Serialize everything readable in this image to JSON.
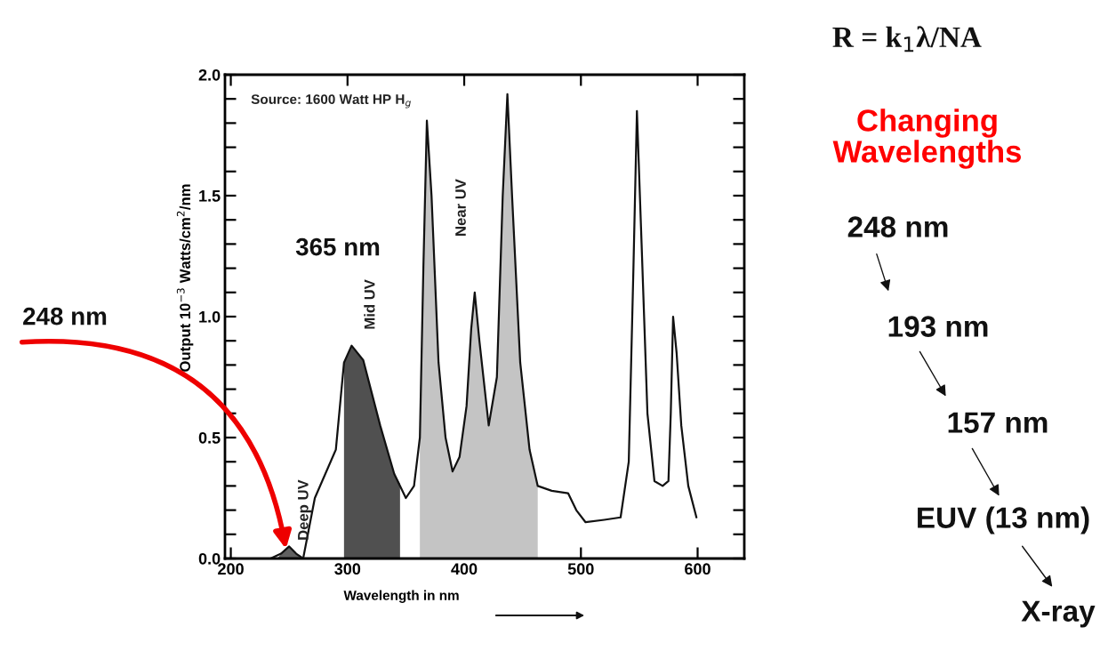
{
  "chart_data": {
    "type": "line",
    "xlabel": "Wavelength in nm",
    "ylabel": "Output 10$^{−3}$ Watts/cm$^{2}$/nm",
    "x": [
      202,
      234,
      243,
      250,
      256,
      262,
      272,
      290,
      297,
      303.5,
      313.5,
      328,
      340,
      350,
      357,
      362,
      365,
      368,
      372,
      378,
      384,
      390,
      396,
      402,
      406,
      409,
      413,
      421,
      428,
      433,
      437,
      441,
      448,
      456,
      463,
      475,
      489,
      496,
      504,
      520,
      534,
      541,
      545,
      548,
      552,
      557,
      563,
      570,
      575,
      577,
      579,
      582,
      586,
      592,
      599
    ],
    "series": [
      {
        "color": "#111111",
        "values": [
          0.0,
          0.0,
          0.02,
          0.05,
          0.02,
          0.0,
          0.25,
          0.45,
          0.81,
          0.88,
          0.82,
          0.55,
          0.35,
          0.25,
          0.3,
          0.5,
          1.2,
          1.81,
          1.5,
          0.81,
          0.5,
          0.36,
          0.42,
          0.63,
          0.95,
          1.1,
          0.9,
          0.55,
          0.75,
          1.5,
          1.92,
          1.5,
          0.81,
          0.45,
          0.3,
          0.28,
          0.27,
          0.2,
          0.15,
          0.16,
          0.17,
          0.4,
          1.2,
          1.85,
          1.3,
          0.6,
          0.32,
          0.3,
          0.32,
          0.6,
          1.0,
          0.85,
          0.55,
          0.3,
          0.17
        ]
      },
      {
        "type": "area",
        "color": "#606060",
        "x": [
          240,
          243,
          250,
          256,
          262
        ],
        "values": [
          0.0,
          0.02,
          0.05,
          0.02,
          0.0
        ]
      },
      {
        "type": "area",
        "color": "#505050",
        "x": [
          297,
          303.5,
          313.5,
          328,
          340,
          345
        ],
        "values": [
          0.81,
          0.88,
          0.82,
          0.55,
          0.35,
          0.31
        ]
      },
      {
        "type": "area",
        "color": "#c4c4c4",
        "x": [
          362,
          365,
          368,
          372,
          378,
          384,
          390,
          396,
          402,
          406,
          409,
          413,
          421,
          428,
          433,
          437,
          441,
          448,
          456,
          463
        ],
        "values": [
          0.5,
          1.2,
          1.81,
          1.5,
          0.81,
          0.5,
          0.36,
          0.42,
          0.63,
          0.95,
          1.1,
          0.9,
          0.55,
          0.75,
          1.5,
          1.92,
          1.5,
          0.81,
          0.45,
          0.3
        ]
      }
    ],
    "xlim": [
      195,
      640
    ],
    "ylim": [
      0,
      2.0
    ],
    "xticks": [
      200,
      300,
      400,
      500,
      {
        "value": 600,
        "label": "600"
      }
    ],
    "yticks": [
      {
        "value": 0,
        "label": "0.0"
      },
      {
        "value": 0.1,
        "label": null
      },
      {
        "value": 0.2,
        "label": null
      },
      {
        "value": 0.3,
        "label": null
      },
      {
        "value": 0.4,
        "label": null
      },
      0.5,
      {
        "value": 0.6,
        "label": null
      },
      {
        "value": 0.7,
        "label": null
      },
      {
        "value": 0.8,
        "label": null
      },
      {
        "value": 0.9,
        "label": null
      },
      {
        "value": 1.0,
        "label": "1.0"
      },
      {
        "value": 1.1,
        "label": null
      },
      {
        "value": 1.2,
        "label": null
      },
      {
        "value": 1.3,
        "label": null
      },
      {
        "value": 1.4,
        "label": null
      },
      1.5,
      {
        "value": 1.6,
        "label": null
      },
      {
        "value": 1.7,
        "label": null
      },
      {
        "value": 1.8,
        "label": null
      },
      {
        "value": 1.9,
        "label": null
      },
      {
        "value": 2.0,
        "label": "2.0"
      }
    ],
    "annotations": [
      "Source: 1600 Watt HP H$_{g}$",
      "365 nm",
      "Deep UV",
      "Mid UV",
      "Near UV",
      "248 nm",
      "R = k$_{1}$λ/NA",
      "Changing\nWavelengths",
      "248 nm",
      "193 nm",
      "157 nm",
      "EUV (13 nm)",
      "X-ray"
    ],
    "grid": false,
    "legend": false,
    "line_style": "solid",
    "marker": "none"
  }
}
